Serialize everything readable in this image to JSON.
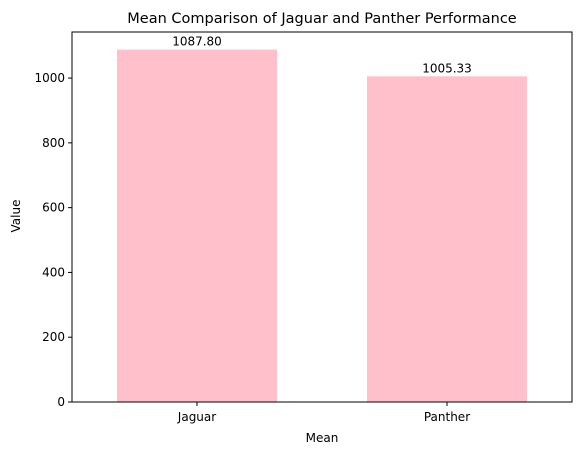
{
  "chart_data": {
    "type": "bar",
    "title": "Mean Comparison of Jaguar and Panther Performance",
    "xlabel": "Mean",
    "ylabel": "Value",
    "categories": [
      "Jaguar",
      "Panther"
    ],
    "values": [
      1087.8,
      1005.33
    ],
    "value_labels": [
      "1087.80",
      "1005.33"
    ],
    "ylim": [
      0,
      1142.19
    ],
    "yticks": [
      0,
      200,
      400,
      600,
      800,
      1000
    ],
    "ytick_labels": [
      "0",
      "200",
      "400",
      "600",
      "800",
      "1000"
    ],
    "bar_color": "#ffc0cb",
    "grid": false,
    "legend": "none"
  }
}
